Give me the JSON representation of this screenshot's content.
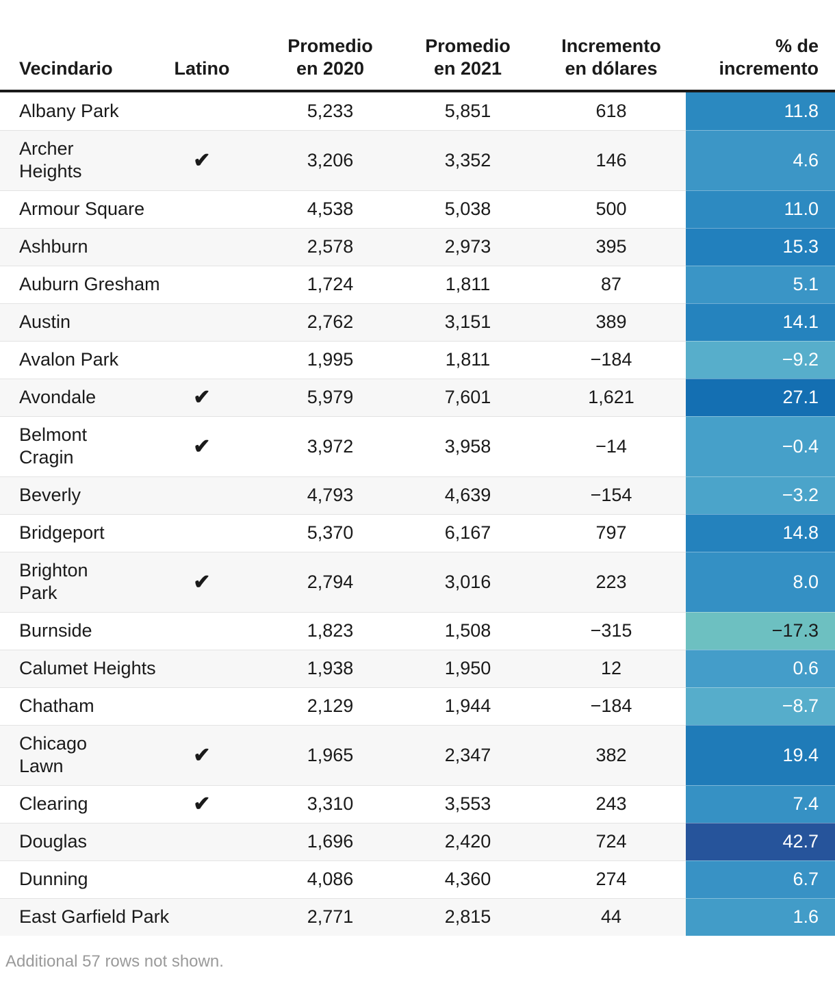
{
  "chart_data": {
    "type": "table",
    "columns": [
      {
        "id": "name",
        "label": "Vecindario",
        "align": "left"
      },
      {
        "id": "latino",
        "label": "Latino",
        "align": "center"
      },
      {
        "id": "p2020",
        "label": "Promedio\nen 2020",
        "align": "center"
      },
      {
        "id": "p2021",
        "label": "Promedio\nen 2021",
        "align": "center"
      },
      {
        "id": "inc",
        "label": "Incremento\nen dólares",
        "align": "center"
      },
      {
        "id": "pct",
        "label": "% de\nincremento",
        "align": "right"
      }
    ],
    "rows": [
      {
        "name": "Albany Park",
        "latino": false,
        "p2020": "5,233",
        "p2021": "5,851",
        "inc": "618",
        "pct": "11.8",
        "cell_bg": "#2b89c0",
        "cell_fg": "#ffffff"
      },
      {
        "name": "Archer\nHeights",
        "latino": true,
        "p2020": "3,206",
        "p2021": "3,352",
        "inc": "146",
        "pct": "4.6",
        "cell_bg": "#3c96c6",
        "cell_fg": "#ffffff"
      },
      {
        "name": "Armour Square",
        "latino": false,
        "p2020": "4,538",
        "p2021": "5,038",
        "inc": "500",
        "pct": "11.0",
        "cell_bg": "#2d8ac1",
        "cell_fg": "#ffffff"
      },
      {
        "name": "Ashburn",
        "latino": false,
        "p2020": "2,578",
        "p2021": "2,973",
        "inc": "395",
        "pct": "15.3",
        "cell_bg": "#2280bd",
        "cell_fg": "#ffffff"
      },
      {
        "name": "Auburn Gresham",
        "latino": false,
        "p2020": "1,724",
        "p2021": "1,811",
        "inc": "87",
        "pct": "5.1",
        "cell_bg": "#3a95c6",
        "cell_fg": "#ffffff"
      },
      {
        "name": "Austin",
        "latino": false,
        "p2020": "2,762",
        "p2021": "3,151",
        "inc": "389",
        "pct": "14.1",
        "cell_bg": "#2583be",
        "cell_fg": "#ffffff"
      },
      {
        "name": "Avalon Park",
        "latino": false,
        "p2020": "1,995",
        "p2021": "1,811",
        "inc": "−184",
        "pct": "−9.2",
        "cell_bg": "#57aecb",
        "cell_fg": "#ffffff"
      },
      {
        "name": "Avondale",
        "latino": true,
        "p2020": "5,979",
        "p2021": "7,601",
        "inc": "1,621",
        "pct": "27.1",
        "cell_bg": "#146fb2",
        "cell_fg": "#ffffff"
      },
      {
        "name": "Belmont\nCragin",
        "latino": true,
        "p2020": "3,972",
        "p2021": "3,958",
        "inc": "−14",
        "pct": "−0.4",
        "cell_bg": "#46a0c9",
        "cell_fg": "#ffffff"
      },
      {
        "name": "Beverly",
        "latino": false,
        "p2020": "4,793",
        "p2021": "4,639",
        "inc": "−154",
        "pct": "−3.2",
        "cell_bg": "#4ba4ca",
        "cell_fg": "#ffffff"
      },
      {
        "name": "Bridgeport",
        "latino": false,
        "p2020": "5,370",
        "p2021": "6,167",
        "inc": "797",
        "pct": "14.8",
        "cell_bg": "#2482bd",
        "cell_fg": "#ffffff"
      },
      {
        "name": "Brighton\nPark",
        "latino": true,
        "p2020": "2,794",
        "p2021": "3,016",
        "inc": "223",
        "pct": "8.0",
        "cell_bg": "#3490c4",
        "cell_fg": "#ffffff"
      },
      {
        "name": "Burnside",
        "latino": false,
        "p2020": "1,823",
        "p2021": "1,508",
        "inc": "−315",
        "pct": "−17.3",
        "cell_bg": "#6dc0c1",
        "cell_fg": "#1a1a1a"
      },
      {
        "name": "Calumet Heights",
        "latino": false,
        "p2020": "1,938",
        "p2021": "1,950",
        "inc": "12",
        "pct": "0.6",
        "cell_bg": "#449dc9",
        "cell_fg": "#ffffff"
      },
      {
        "name": "Chatham",
        "latino": false,
        "p2020": "2,129",
        "p2021": "1,944",
        "inc": "−184",
        "pct": "−8.7",
        "cell_bg": "#56adcb",
        "cell_fg": "#ffffff"
      },
      {
        "name": "Chicago\nLawn",
        "latino": true,
        "p2020": "1,965",
        "p2021": "2,347",
        "inc": "382",
        "pct": "19.4",
        "cell_bg": "#1f7bb8",
        "cell_fg": "#ffffff"
      },
      {
        "name": "Clearing",
        "latino": true,
        "p2020": "3,310",
        "p2021": "3,553",
        "inc": "243",
        "pct": "7.4",
        "cell_bg": "#3691c4",
        "cell_fg": "#ffffff"
      },
      {
        "name": "Douglas",
        "latino": false,
        "p2020": "1,696",
        "p2021": "2,420",
        "inc": "724",
        "pct": "42.7",
        "cell_bg": "#26549b",
        "cell_fg": "#ffffff"
      },
      {
        "name": "Dunning",
        "latino": false,
        "p2020": "4,086",
        "p2021": "4,360",
        "inc": "274",
        "pct": "6.7",
        "cell_bg": "#3892c5",
        "cell_fg": "#ffffff"
      },
      {
        "name": "East Garfield Park",
        "latino": false,
        "p2020": "2,771",
        "p2021": "2,815",
        "inc": "44",
        "pct": "1.6",
        "cell_bg": "#429cc8",
        "cell_fg": "#ffffff"
      }
    ],
    "footnote": "Additional 57 rows not shown."
  },
  "icons": {
    "latino_check": "✔"
  },
  "colors": {
    "header_border": "#1a1a1a",
    "row_alt_bg": "#f7f7f7",
    "separator": "#e3e3e3",
    "footnote_text": "#9a9a9a",
    "body_text": "#1a1a1a",
    "negative_low_bg": "#6dc0c1",
    "max_increase_bg": "#26549b"
  }
}
